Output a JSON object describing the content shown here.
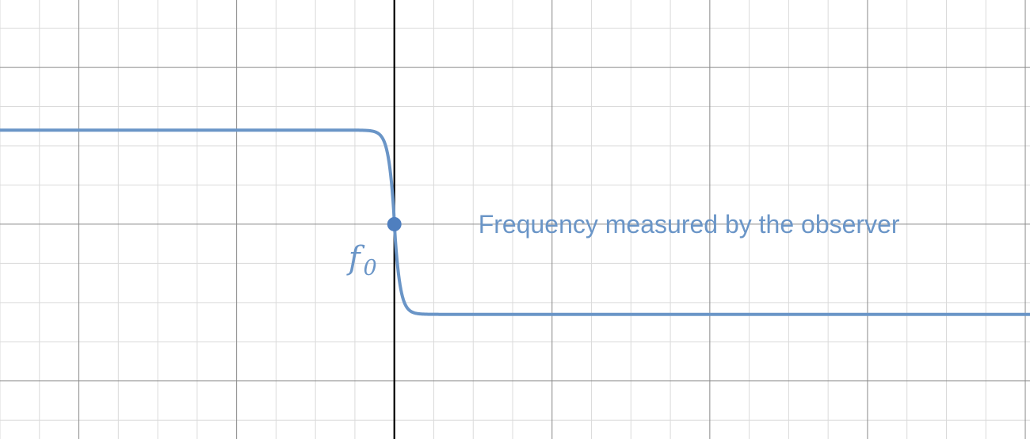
{
  "chart_data": {
    "type": "line",
    "title": "",
    "xlabel": "",
    "ylabel": "",
    "xlim": [
      -5,
      8.06
    ],
    "ylim": [
      -2.74,
      2.86
    ],
    "grid": true,
    "minor_grid": true,
    "series": [
      {
        "curve": "step_down",
        "high": 1.2,
        "low": -1.15,
        "center": 0,
        "color": "#6a95c7"
      }
    ],
    "highlight_point": {
      "x": 0,
      "y": 0
    },
    "point_label": {
      "symbol": "f",
      "subscript": "0"
    },
    "annotation": "Frequency measured by the observer"
  },
  "colors": {
    "curve": "#6a95c7",
    "major_grid": "#8a8a8a",
    "minor_grid": "#dadada",
    "axis": "#000000"
  }
}
